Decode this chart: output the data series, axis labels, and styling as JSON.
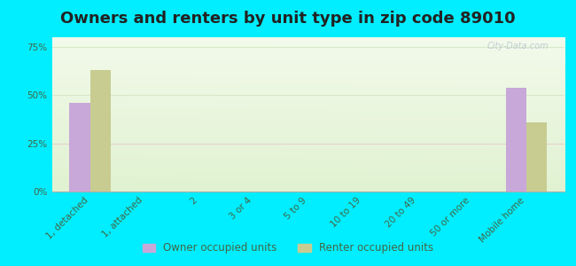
{
  "title": "Owners and renters by unit type in zip code 89010",
  "categories": [
    "1, detached",
    "1, attached",
    "2",
    "3 or 4",
    "5 to 9",
    "10 to 19",
    "20 to 49",
    "50 or more",
    "Mobile home"
  ],
  "owner_values": [
    46,
    0,
    0,
    0,
    0,
    0,
    0,
    0,
    54
  ],
  "renter_values": [
    63,
    0,
    0,
    0,
    0,
    0,
    0,
    0,
    36
  ],
  "owner_color": "#c8a8d8",
  "renter_color": "#c8cc90",
  "background_color": "#00eeff",
  "plot_bg_color": "#e8f4e0",
  "yticks": [
    0,
    25,
    50,
    75
  ],
  "ylim": [
    0,
    80
  ],
  "bar_width": 0.38,
  "watermark": "City-Data.com",
  "legend_owner": "Owner occupied units",
  "legend_renter": "Renter occupied units",
  "title_fontsize": 13,
  "tick_fontsize": 7.5,
  "axis_label_color": "#446644",
  "grid_color": "#d8e8c8",
  "separator_color": "#f0c0d0"
}
